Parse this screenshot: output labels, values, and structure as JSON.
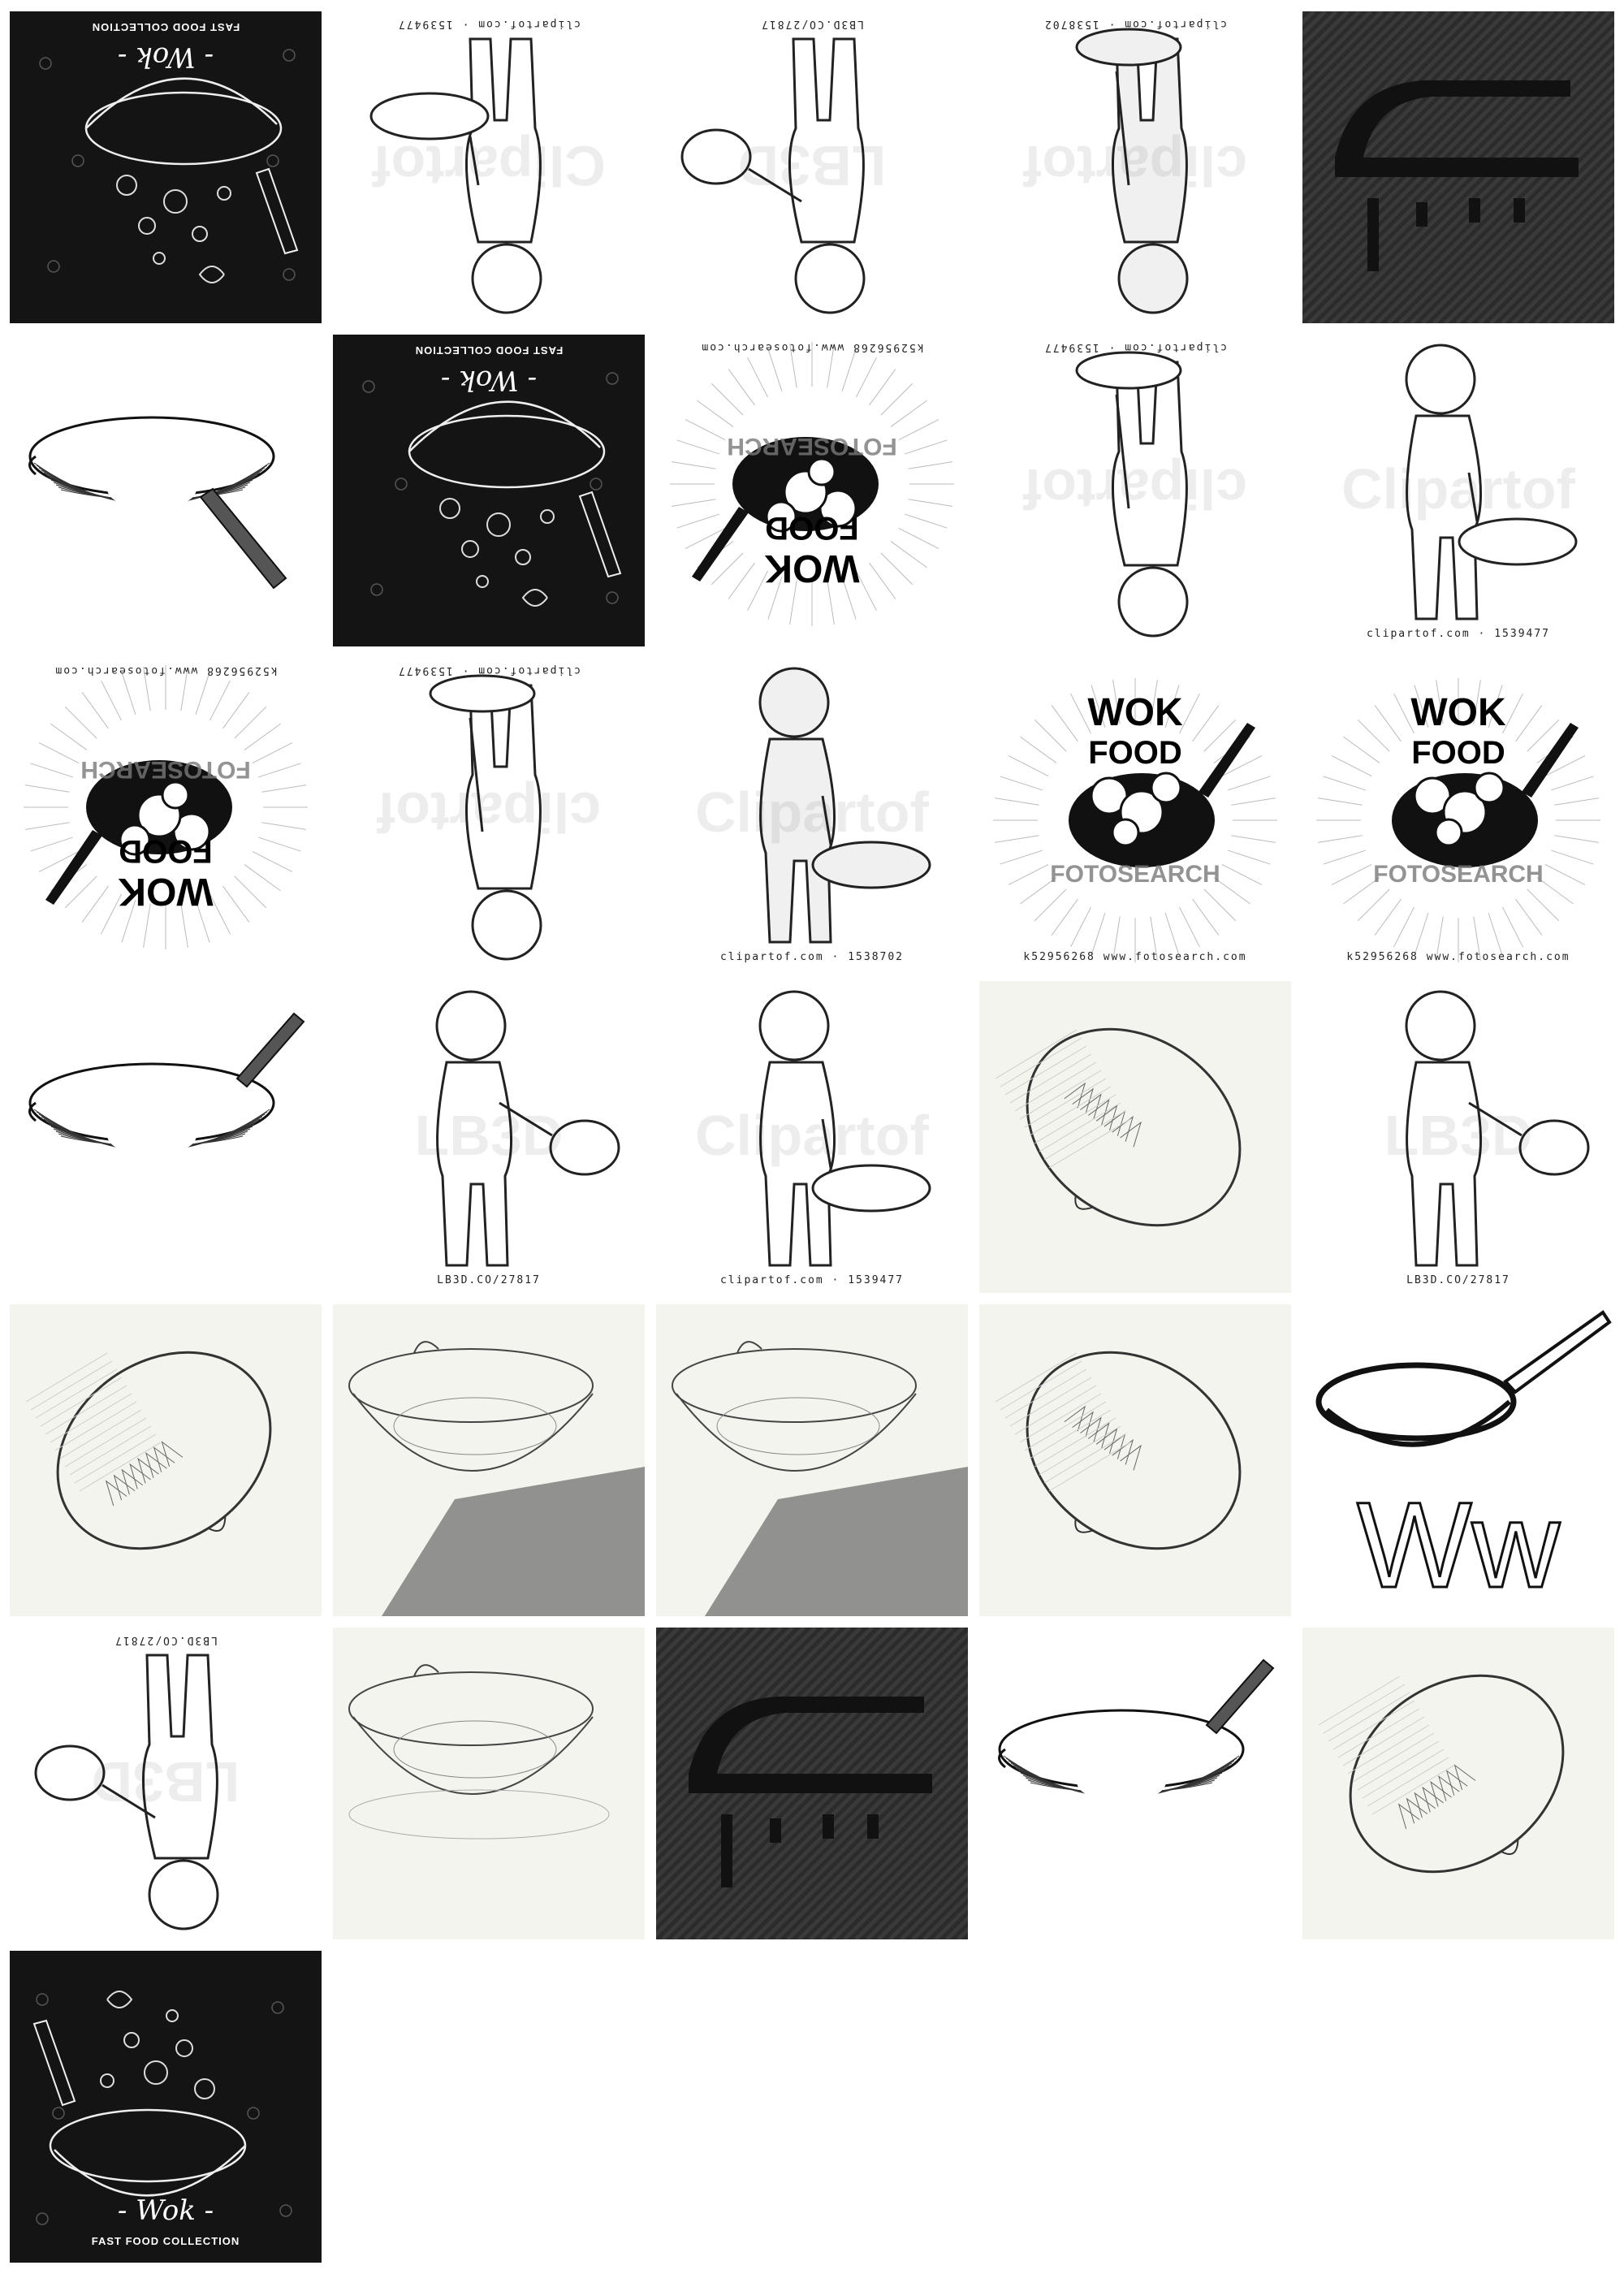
{
  "tiles": [
    {
      "kind": "chalk",
      "title": "- Wok -",
      "subtitle": "FAST FOOD COLLECTION",
      "flip": true
    },
    {
      "kind": "figure-pan-low",
      "caption": "clipartof.com  ·  1539477",
      "watermark": "Clipartof",
      "flip": true
    },
    {
      "kind": "figure-pan-out",
      "caption": "LB3D.CO/27817",
      "watermark": "LB3D",
      "flip": true,
      "halftone": false
    },
    {
      "kind": "figure-pan-up",
      "caption": "clipartof.com  ·  1538702",
      "watermark": "clipartof",
      "flip": true,
      "halftone": true
    },
    {
      "kind": "iron-icon"
    },
    {
      "kind": "engraved-wok",
      "flip": false
    },
    {
      "kind": "chalk",
      "title": "- Wok -",
      "subtitle": "FAST FOOD COLLECTION",
      "flip": true
    },
    {
      "kind": "wok-food",
      "caption": "k52956268  www.fotosearch.com",
      "watermark": "FOTOSEARCH",
      "word1": "WOK",
      "word2": "FOOD",
      "flip": true
    },
    {
      "kind": "figure-pan-up",
      "caption": "clipartof.com  ·  1539477",
      "watermark": "clipartof",
      "flip": true,
      "halftone": false
    },
    {
      "kind": "figure-pan-low",
      "caption": "clipartof.com  ·  1539477",
      "watermark": "Clipartof",
      "flip": false
    },
    {
      "kind": "wok-food",
      "caption": "k52956268  www.fotosearch.com",
      "watermark": "FOTOSEARCH",
      "word1": "WOK",
      "word2": "FOOD",
      "flip": true
    },
    {
      "kind": "figure-pan-up",
      "caption": "clipartof.com  ·  1539477",
      "watermark": "clipartof",
      "flip": true,
      "halftone": false
    },
    {
      "kind": "figure-halftone",
      "caption": "clipartof.com  ·  1538702",
      "watermark": "Clipartof",
      "flip": false
    },
    {
      "kind": "wok-food",
      "caption": "k52956268  www.fotosearch.com",
      "watermark": "FOTOSEARCH",
      "word1": "WOK",
      "word2": "FOOD",
      "flip": false
    },
    {
      "kind": "wok-food",
      "caption": "k52956268  www.fotosearch.com",
      "watermark": "FOTOSEARCH",
      "word1": "WOK",
      "word2": "FOOD",
      "flip": false
    },
    {
      "kind": "engraved-wok2",
      "flip": false
    },
    {
      "kind": "figure-pan-out",
      "caption": "LB3D.CO/27817",
      "watermark": "LB3D",
      "flip": false
    },
    {
      "kind": "figure-pan-low",
      "caption": "clipartof.com  ·  1539477",
      "watermark": "Clipartof",
      "flip": false
    },
    {
      "kind": "sketch-tilted"
    },
    {
      "kind": "figure-pan-out",
      "caption": "LB3D.CO/27817",
      "watermark": "LB3D",
      "flip": false
    },
    {
      "kind": "sketch-tilted2"
    },
    {
      "kind": "sketch-bowl"
    },
    {
      "kind": "sketch-bowl"
    },
    {
      "kind": "sketch-tilted"
    },
    {
      "kind": "letter-w",
      "letters": "Ww"
    },
    {
      "kind": "figure-pan-out",
      "caption": "LB3D.CO/27817",
      "watermark": "LB3D",
      "flip": true
    },
    {
      "kind": "sketch-bowl-light"
    },
    {
      "kind": "iron-icon"
    },
    {
      "kind": "engraved-wok2",
      "flip": false
    },
    {
      "kind": "sketch-tilted2"
    },
    {
      "kind": "chalk",
      "title": "- Wok -",
      "subtitle": "FAST FOOD COLLECTION",
      "flip": false
    }
  ]
}
